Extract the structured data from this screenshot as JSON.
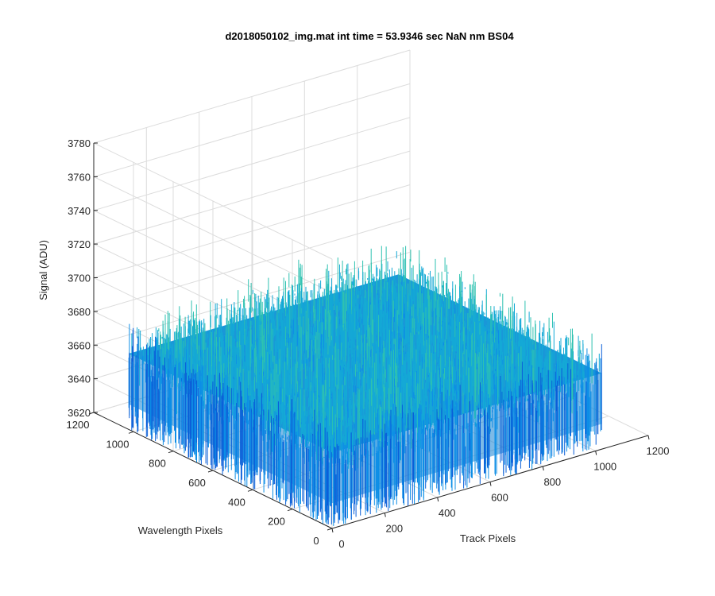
{
  "chart_data": {
    "type": "surface",
    "title": "d2018050102_img.mat int time = 53.9346 sec   NaN nm BS04",
    "xlabel": "Track Pixels",
    "ylabel": "Wavelength Pixels",
    "zlabel": "Signal (ADU)",
    "xlim": [
      0,
      1200
    ],
    "ylim": [
      0,
      1200
    ],
    "zlim": [
      3620,
      3780
    ],
    "x_ticks": [
      "0",
      "200",
      "400",
      "600",
      "800",
      "1000",
      "1200"
    ],
    "y_ticks": [
      "0",
      "200",
      "400",
      "600",
      "800",
      "1000",
      "1200"
    ],
    "z_ticks": [
      "3620",
      "3640",
      "3660",
      "3680",
      "3700",
      "3720",
      "3740",
      "3760",
      "3780"
    ],
    "data_extent": {
      "x": [
        0,
        1024
      ],
      "y": [
        0,
        1024
      ]
    },
    "signal_mean": 3665,
    "signal_typical_range": [
      3640,
      3725
    ],
    "colormap": [
      "#0a5fd8",
      "#0d8ee6",
      "#14a9d6",
      "#2ec2b0",
      "#6fd08a",
      "#a6d56a"
    ],
    "grid": true
  }
}
